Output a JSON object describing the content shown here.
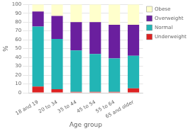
{
  "chart_data": {
    "type": "bar",
    "stacked": true,
    "xlabel": "Age group",
    "ylabel": "%",
    "categories": [
      "18 and 19",
      "20 to 34",
      "35 to 44",
      "45 to 54",
      "55 to 64",
      "65 and older"
    ],
    "series": [
      {
        "name": "Underweight",
        "color": "#dd2222",
        "values": [
          7,
          4,
          1,
          1,
          1,
          5
        ]
      },
      {
        "name": "Normal",
        "color": "#22b5b5",
        "values": [
          68,
          57,
          47,
          43,
          38,
          37
        ]
      },
      {
        "name": "Overweight",
        "color": "#6a1f9e",
        "values": [
          17,
          26,
          32,
          36,
          38,
          35
        ]
      },
      {
        "name": "Obese",
        "color": "#ffffcc",
        "values": [
          8,
          13,
          20,
          20,
          23,
          23
        ]
      }
    ],
    "ylim": [
      0,
      100
    ],
    "yticks": [
      0,
      10,
      20,
      30,
      40,
      50,
      60,
      70,
      80,
      90,
      100
    ],
    "grid": true,
    "legend": "right"
  }
}
